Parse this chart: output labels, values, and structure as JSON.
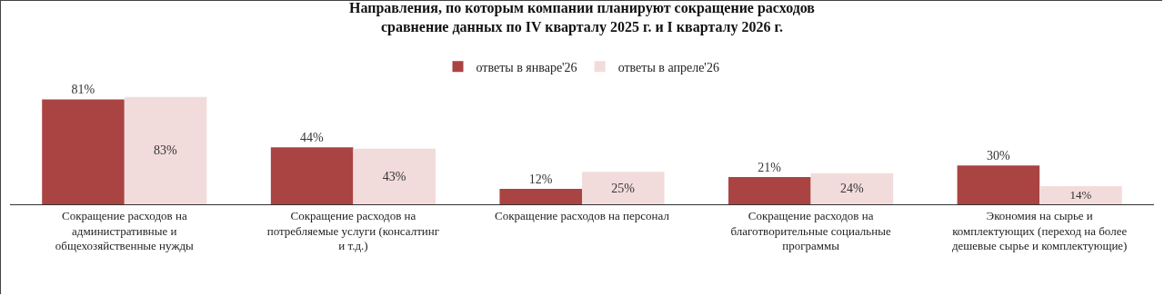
{
  "chart_data": {
    "type": "bar",
    "title": "Направления, по которым компании планируют сокращение расходов",
    "subtitle": "сравнение данных по IV кварталу 2025 г. и I кварталу 2026 г.",
    "categories": [
      "Сокращение расходов на административные и общехозяйственные нужды",
      "Сокращение расходов на потребляемые услуги (консалтинг и т.д.)",
      "Сокращение расходов на персонал",
      "Сокращение расходов на благотворительные социальные программы",
      "Экономия на сырье и комплектующих (переход на более дешевые сырье и комплектующие)"
    ],
    "series": [
      {
        "name": "ответы в январе'26",
        "color": "#a94442",
        "values": [
          81,
          44,
          12,
          21,
          30
        ],
        "value_labels": [
          "81%",
          "44%",
          "12%",
          "21%",
          "30%"
        ]
      },
      {
        "name": "ответы в апреле'26",
        "color": "#f2dcdb",
        "values": [
          83,
          43,
          25,
          24,
          14
        ],
        "value_labels": [
          "83%",
          "43%",
          "25%",
          "24%",
          "14%"
        ]
      }
    ],
    "legend": "top"
  }
}
